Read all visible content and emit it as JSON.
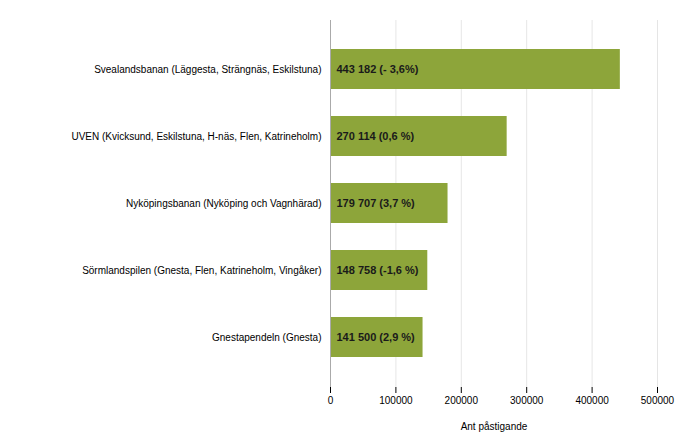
{
  "chart_data": {
    "type": "bar",
    "orientation": "horizontal",
    "categories": [
      "Gnestapendeln (Gnesta)",
      "Sörmlandspilen (Gnesta, Flen, Katrineholm, Vingåker)",
      "Nyköpingsbanan (Nyköping och Vagnhärad)",
      "UVEN (Kvicksund, Eskilstuna, H-näs, Flen, Katrineholm)",
      "Svealandsbanan (Läggesta, Strängnäs, Eskilstuna)"
    ],
    "values": [
      141500,
      148758,
      179707,
      270114,
      443182
    ],
    "value_labels": [
      "141 500 (2,9 %)",
      "148 758 (-1,6 %)",
      "179 707 (3,7 %)",
      "270 114 (0,6 %)",
      "443 182 (- 3,6%)"
    ],
    "data_labels": true,
    "color": "#8da53a",
    "xlabel": "Ant påstigande",
    "xlim": [
      0,
      500000
    ],
    "xticks": [
      0,
      100000,
      200000,
      300000,
      400000,
      500000
    ],
    "grid": true
  }
}
